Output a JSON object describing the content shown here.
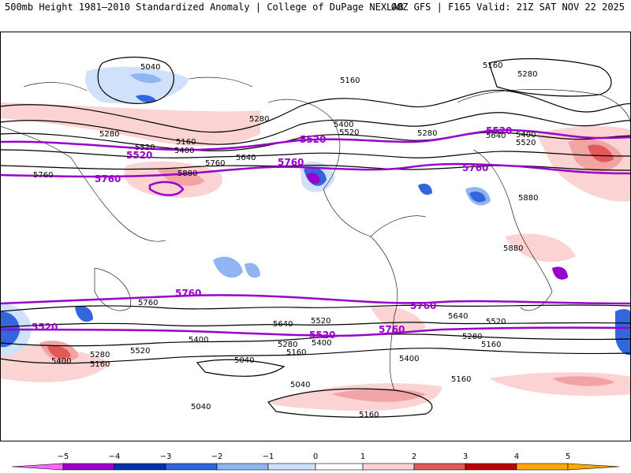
{
  "header": {
    "title_left": "500mb Height 1981–2010 Standardized Anomaly | College of DuPage NEXLAB",
    "title_right": "00Z GFS | F165 Valid: 21Z SAT NOV 22 2025"
  },
  "colors": {
    "contour": "#000000",
    "highlight": "#9900cc",
    "scale": [
      "#ff66ff",
      "#9900cc",
      "#0033aa",
      "#3366dd",
      "#8fb6f2",
      "#cfe1fb",
      "#ffffff",
      "#fbd3d3",
      "#f2a3a3",
      "#e05a5a",
      "#c00000",
      "#ffaa00"
    ]
  },
  "contour_labels": [
    "5040",
    "5040",
    "5040",
    "5040",
    "5160",
    "5160",
    "5160",
    "5160",
    "5160",
    "5160",
    "5160",
    "5160",
    "5280",
    "5280",
    "5280",
    "5280",
    "5280",
    "5280",
    "5280",
    "5400",
    "5400",
    "5400",
    "5400",
    "5400",
    "5400",
    "5400",
    "5520",
    "5520",
    "5520",
    "5520",
    "5520",
    "5520",
    "5640",
    "5640",
    "5640",
    "5640",
    "5760",
    "5760",
    "5760",
    "5880",
    "5880",
    "5880"
  ],
  "highlight_labels": [
    "5520",
    "5520",
    "5520",
    "5520",
    "5760",
    "5760",
    "5760",
    "5760",
    "5760",
    "5760",
    "5520"
  ],
  "colorbar": {
    "ticks": [
      "−5",
      "−4",
      "−3",
      "−2",
      "−1",
      "0",
      "1",
      "2",
      "3",
      "4",
      "5"
    ]
  }
}
